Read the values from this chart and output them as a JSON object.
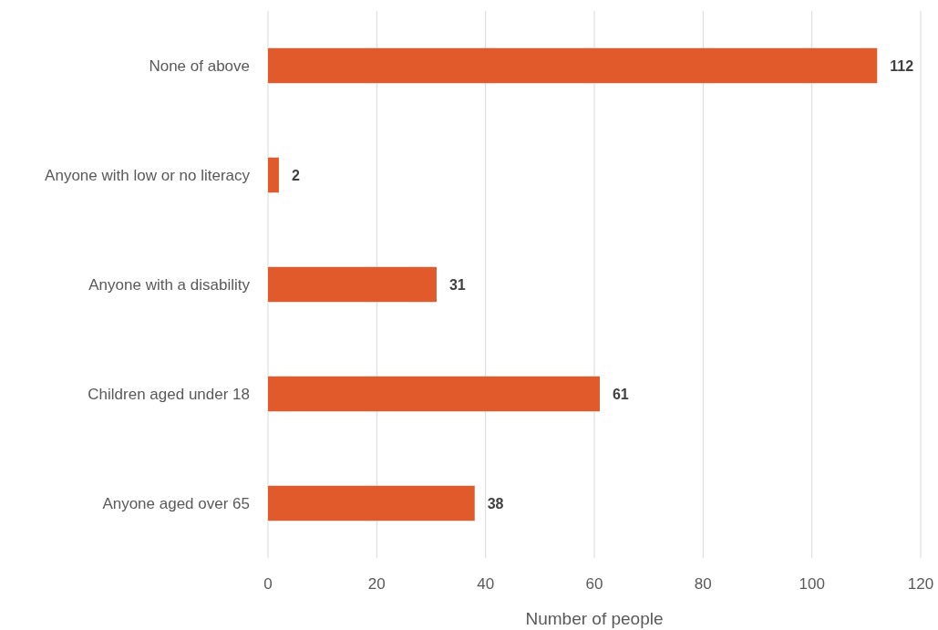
{
  "chart_data": {
    "type": "bar",
    "orientation": "horizontal",
    "xlabel": "Number of people",
    "categories": [
      "None of above",
      "Anyone with low or no literacy",
      "Anyone with a disability",
      "Children aged under 18",
      "Anyone aged over 65"
    ],
    "values": [
      112,
      2,
      31,
      61,
      38
    ],
    "color": "#e05a2b",
    "xlim": [
      0,
      120
    ],
    "xticks": [
      0,
      20,
      40,
      60,
      80,
      100,
      120
    ],
    "grid": "x",
    "data_labels": true
  }
}
